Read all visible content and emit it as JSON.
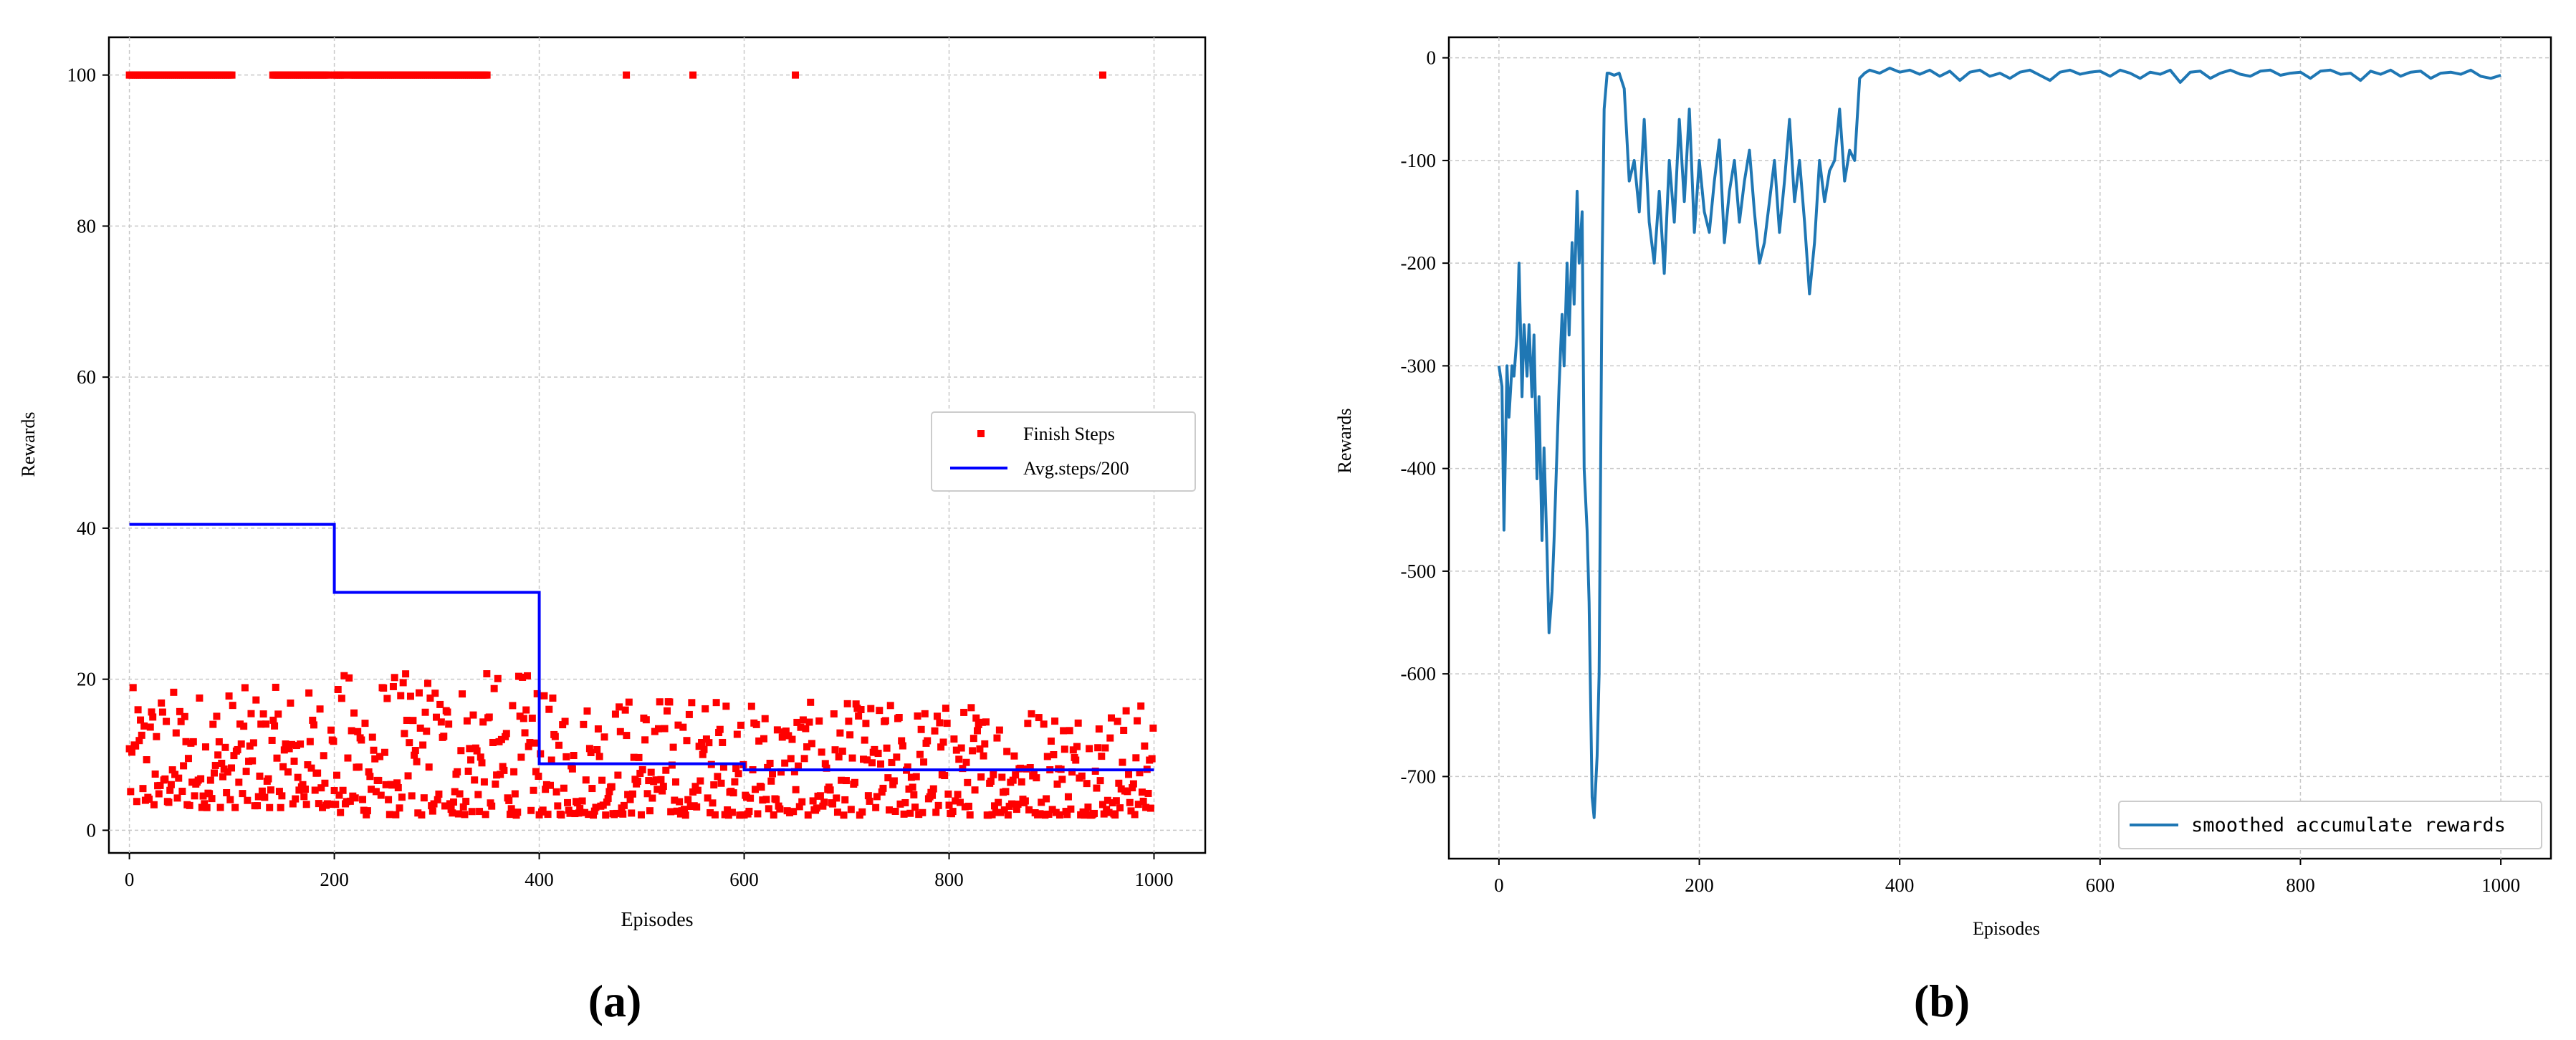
{
  "figure": {
    "background": "#ffffff"
  },
  "chart_data": [
    {
      "type": "scatter",
      "panel_label": "(a)",
      "xlabel": "Episodes",
      "ylabel": "Rewards",
      "xlim": [
        -20,
        1050
      ],
      "ylim": [
        -3,
        105
      ],
      "x_ticks": [
        0,
        200,
        400,
        600,
        800,
        1000
      ],
      "x_tick_labels": [
        "0",
        "200",
        "400",
        "600",
        "800",
        "1000"
      ],
      "y_ticks": [
        0,
        20,
        40,
        60,
        80,
        100
      ],
      "y_tick_labels": [
        "0",
        "20",
        "40",
        "60",
        "80",
        "100"
      ],
      "grid": true,
      "legend_position": "center-right",
      "series": [
        {
          "name": "Finish Steps",
          "kind": "scatter",
          "color": "#ff0000",
          "note_generated": "episodes 0-1000; dense clusters at 100 for episodes 0-100, 140-195, 200-350, isolated at 485, 550, 650, 950; remaining points between 2 and 21",
          "ceiling_runs": [
            [
              0,
              100
            ],
            [
              140,
              195
            ],
            [
              200,
              210
            ],
            [
              215,
              350
            ]
          ],
          "ceiling_singles": [
            485,
            550,
            650,
            950
          ],
          "ceiling_value": 100,
          "low_band_ranges": [
            {
              "from": 0,
              "to": 200,
              "min": 3,
              "max": 19
            },
            {
              "from": 200,
              "to": 400,
              "min": 2,
              "max": 21
            },
            {
              "from": 400,
              "to": 600,
              "min": 2,
              "max": 18
            },
            {
              "from": 600,
              "to": 800,
              "min": 2,
              "max": 17
            },
            {
              "from": 800,
              "to": 1000,
              "min": 2,
              "max": 17
            }
          ]
        },
        {
          "name": "Avg.steps/200",
          "kind": "step",
          "color": "#0000ff",
          "x": [
            0,
            200,
            200,
            400,
            400,
            600,
            600,
            1000
          ],
          "y": [
            40.5,
            40.5,
            31.5,
            31.5,
            8.8,
            8.8,
            8.0,
            8.0
          ]
        }
      ]
    },
    {
      "type": "line",
      "panel_label": "(b)",
      "xlabel": "Episodes",
      "ylabel": "Rewards",
      "xlim": [
        -50,
        1050
      ],
      "ylim": [
        -780,
        20
      ],
      "x_ticks": [
        0,
        200,
        400,
        600,
        800,
        1000
      ],
      "x_tick_labels": [
        "0",
        "200",
        "400",
        "600",
        "800",
        "1000"
      ],
      "y_ticks": [
        0,
        -100,
        -200,
        -300,
        -400,
        -500,
        -600,
        -700
      ],
      "y_tick_labels": [
        "0",
        "-100",
        "-200",
        "-300",
        "-400",
        "-500",
        "-600",
        "-700"
      ],
      "grid": true,
      "legend_position": "lower-right",
      "series": [
        {
          "name": "smoothed accumulate rewards",
          "color": "#1f77b4",
          "x": [
            0,
            3,
            5,
            8,
            10,
            13,
            15,
            18,
            20,
            23,
            25,
            28,
            30,
            33,
            35,
            38,
            40,
            43,
            45,
            48,
            50,
            53,
            55,
            58,
            60,
            63,
            65,
            68,
            70,
            73,
            75,
            78,
            80,
            83,
            85,
            88,
            90,
            93,
            95,
            98,
            100,
            103,
            105,
            108,
            110,
            115,
            120,
            125,
            130,
            135,
            140,
            145,
            150,
            155,
            160,
            165,
            170,
            175,
            180,
            185,
            190,
            195,
            200,
            205,
            210,
            215,
            220,
            225,
            230,
            235,
            240,
            245,
            250,
            255,
            260,
            265,
            270,
            275,
            280,
            285,
            290,
            295,
            300,
            305,
            310,
            315,
            320,
            325,
            330,
            335,
            340,
            345,
            350,
            355,
            360,
            365,
            370,
            380,
            390,
            400,
            410,
            420,
            430,
            440,
            450,
            460,
            470,
            480,
            490,
            500,
            510,
            520,
            530,
            540,
            550,
            560,
            570,
            580,
            590,
            600,
            610,
            620,
            630,
            640,
            650,
            660,
            670,
            680,
            690,
            700,
            710,
            720,
            730,
            740,
            750,
            760,
            770,
            780,
            790,
            800,
            810,
            820,
            830,
            840,
            850,
            860,
            870,
            880,
            890,
            900,
            910,
            920,
            930,
            940,
            950,
            960,
            970,
            980,
            990,
            1000
          ],
          "y": [
            -300,
            -320,
            -460,
            -300,
            -350,
            -300,
            -310,
            -270,
            -200,
            -330,
            -260,
            -310,
            -260,
            -330,
            -270,
            -410,
            -330,
            -470,
            -380,
            -480,
            -560,
            -520,
            -470,
            -380,
            -320,
            -250,
            -300,
            -200,
            -270,
            -180,
            -240,
            -130,
            -200,
            -150,
            -400,
            -460,
            -530,
            -720,
            -740,
            -680,
            -600,
            -200,
            -50,
            -15,
            -15,
            -17,
            -15,
            -30,
            -120,
            -100,
            -150,
            -60,
            -160,
            -200,
            -130,
            -210,
            -100,
            -160,
            -60,
            -140,
            -50,
            -170,
            -100,
            -150,
            -170,
            -120,
            -80,
            -180,
            -130,
            -100,
            -160,
            -120,
            -90,
            -150,
            -200,
            -180,
            -140,
            -100,
            -170,
            -120,
            -60,
            -140,
            -100,
            -160,
            -230,
            -180,
            -100,
            -140,
            -110,
            -100,
            -50,
            -120,
            -90,
            -100,
            -20,
            -15,
            -12,
            -15,
            -10,
            -14,
            -12,
            -16,
            -12,
            -18,
            -13,
            -22,
            -14,
            -12,
            -18,
            -15,
            -20,
            -14,
            -12,
            -17,
            -22,
            -14,
            -12,
            -16,
            -14,
            -13,
            -18,
            -12,
            -15,
            -20,
            -14,
            -16,
            -12,
            -24,
            -14,
            -13,
            -20,
            -15,
            -12,
            -16,
            -18,
            -13,
            -12,
            -17,
            -15,
            -14,
            -20,
            -13,
            -12,
            -16,
            -15,
            -22,
            -13,
            -16,
            -12,
            -18,
            -14,
            -13,
            -20,
            -15,
            -14,
            -16,
            -12,
            -18,
            -20,
            -17
          ]
        }
      ]
    }
  ]
}
